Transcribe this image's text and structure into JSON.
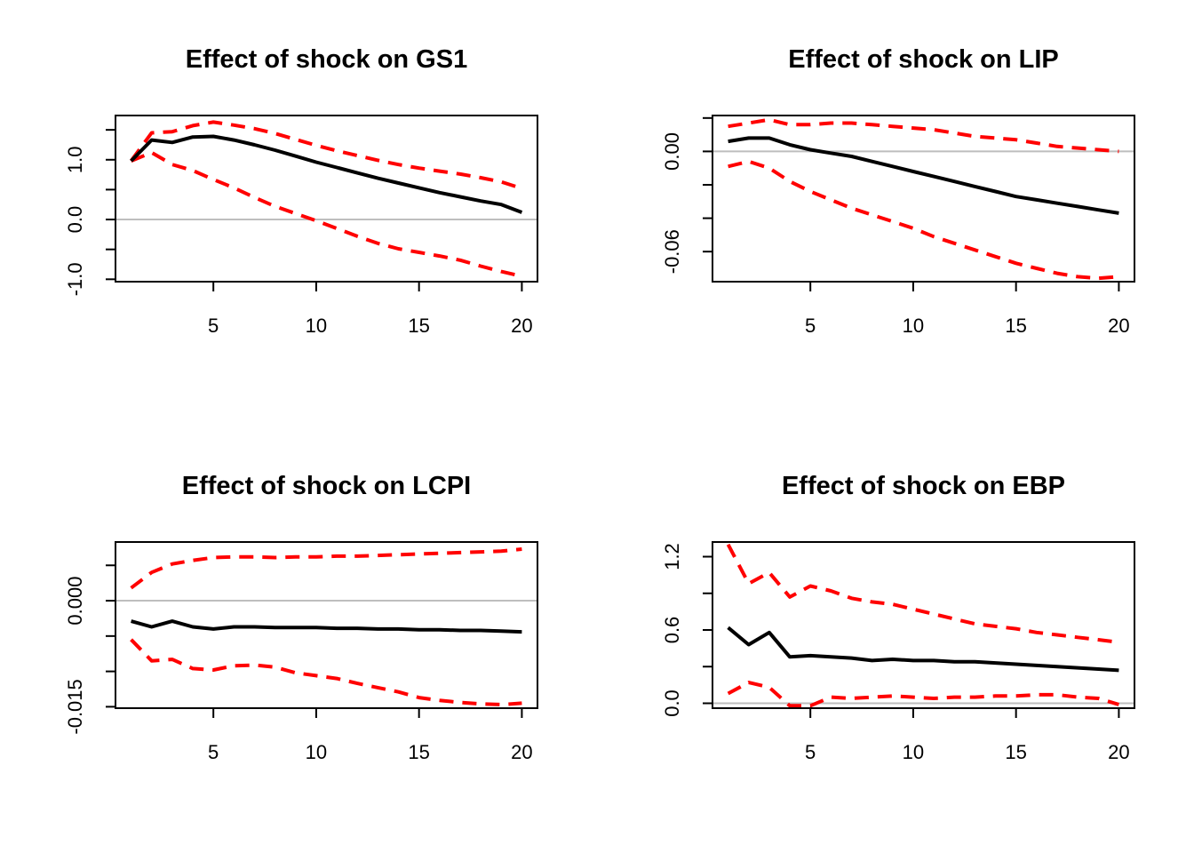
{
  "chart_data": [
    {
      "type": "line",
      "title": "Effect of shock on GS1",
      "xlabel": "",
      "ylabel": "",
      "x": [
        1,
        2,
        3,
        4,
        5,
        6,
        7,
        8,
        9,
        10,
        11,
        12,
        13,
        14,
        15,
        16,
        17,
        18,
        19,
        20
      ],
      "xlim": [
        0.24,
        20.76
      ],
      "ylim": [
        -1.04,
        1.74
      ],
      "xticks": [
        5,
        10,
        15,
        20
      ],
      "yticks": [
        -1.0,
        -0.5,
        0.0,
        0.5,
        1.0,
        1.5
      ],
      "yticklabels": [
        "-1.0",
        "",
        "0.0",
        "",
        "1.0",
        ""
      ],
      "zero_line": true,
      "series": [
        {
          "style": "solid",
          "color": "#000000",
          "values": [
            0.98,
            1.33,
            1.29,
            1.38,
            1.39,
            1.33,
            1.25,
            1.16,
            1.06,
            0.96,
            0.87,
            0.78,
            0.69,
            0.61,
            0.53,
            0.45,
            0.38,
            0.31,
            0.25,
            0.12
          ]
        },
        {
          "style": "dashed",
          "color": "#ff0000",
          "values": [
            0.98,
            1.45,
            1.47,
            1.57,
            1.63,
            1.58,
            1.52,
            1.44,
            1.34,
            1.24,
            1.15,
            1.07,
            0.99,
            0.92,
            0.86,
            0.81,
            0.76,
            0.7,
            0.63,
            0.52
          ]
        },
        {
          "style": "dashed",
          "color": "#ff0000",
          "values": [
            0.98,
            1.12,
            0.92,
            0.82,
            0.67,
            0.53,
            0.37,
            0.22,
            0.1,
            -0.02,
            -0.15,
            -0.28,
            -0.4,
            -0.49,
            -0.55,
            -0.61,
            -0.68,
            -0.78,
            -0.87,
            -0.95
          ]
        }
      ]
    },
    {
      "type": "line",
      "title": "Effect of shock on LIP",
      "xlabel": "",
      "ylabel": "",
      "x": [
        1,
        2,
        3,
        4,
        5,
        6,
        7,
        8,
        9,
        10,
        11,
        12,
        13,
        14,
        15,
        16,
        17,
        18,
        19,
        20
      ],
      "xlim": [
        0.24,
        20.76
      ],
      "ylim": [
        -0.078,
        0.0215
      ],
      "xticks": [
        5,
        10,
        15,
        20
      ],
      "yticks": [
        -0.06,
        -0.04,
        -0.02,
        0.0,
        0.02
      ],
      "yticklabels": [
        "-0.06",
        "",
        "",
        "0.00",
        ""
      ],
      "zero_line": true,
      "series": [
        {
          "style": "solid",
          "color": "#000000",
          "values": [
            0.006,
            0.008,
            0.008,
            0.004,
            0.001,
            -0.001,
            -0.003,
            -0.006,
            -0.009,
            -0.012,
            -0.015,
            -0.018,
            -0.021,
            -0.024,
            -0.027,
            -0.029,
            -0.031,
            -0.033,
            -0.035,
            -0.037
          ]
        },
        {
          "style": "dashed",
          "color": "#ff0000",
          "values": [
            0.015,
            0.017,
            0.019,
            0.016,
            0.016,
            0.017,
            0.017,
            0.016,
            0.015,
            0.014,
            0.013,
            0.011,
            0.009,
            0.008,
            0.007,
            0.005,
            0.003,
            0.002,
            0.001,
            0.0
          ]
        },
        {
          "style": "dashed",
          "color": "#ff0000",
          "values": [
            -0.009,
            -0.006,
            -0.01,
            -0.018,
            -0.024,
            -0.029,
            -0.034,
            -0.038,
            -0.042,
            -0.046,
            -0.051,
            -0.055,
            -0.059,
            -0.063,
            -0.067,
            -0.07,
            -0.073,
            -0.075,
            -0.076,
            -0.075
          ]
        }
      ]
    },
    {
      "type": "line",
      "title": "Effect of shock on LCPI",
      "xlabel": "",
      "ylabel": "",
      "x": [
        1,
        2,
        3,
        4,
        5,
        6,
        7,
        8,
        9,
        10,
        11,
        12,
        13,
        14,
        15,
        16,
        17,
        18,
        19,
        20
      ],
      "xlim": [
        0.24,
        20.76
      ],
      "ylim": [
        -0.0152,
        0.0083
      ],
      "xticks": [
        5,
        10,
        15,
        20
      ],
      "yticks": [
        -0.015,
        -0.01,
        -0.005,
        0.0,
        0.005
      ],
      "yticklabels": [
        "-0.015",
        "",
        "",
        "0.000",
        ""
      ],
      "zero_line": true,
      "series": [
        {
          "style": "solid",
          "color": "#000000",
          "values": [
            -0.0029,
            -0.0037,
            -0.0029,
            -0.0037,
            -0.004,
            -0.0037,
            -0.0037,
            -0.0038,
            -0.0038,
            -0.0038,
            -0.0039,
            -0.0039,
            -0.004,
            -0.004,
            -0.0041,
            -0.0041,
            -0.0042,
            -0.0042,
            -0.0043,
            -0.0044
          ]
        },
        {
          "style": "dashed",
          "color": "#ff0000",
          "values": [
            0.0018,
            0.004,
            0.0052,
            0.0057,
            0.0061,
            0.0062,
            0.0062,
            0.0061,
            0.0062,
            0.0062,
            0.0063,
            0.0063,
            0.0064,
            0.0065,
            0.0066,
            0.0067,
            0.0068,
            0.0069,
            0.007,
            0.0073
          ]
        },
        {
          "style": "dashed",
          "color": "#ff0000",
          "values": [
            -0.0055,
            -0.0085,
            -0.0083,
            -0.0096,
            -0.0098,
            -0.0092,
            -0.0091,
            -0.0094,
            -0.0102,
            -0.0106,
            -0.011,
            -0.0117,
            -0.0123,
            -0.0129,
            -0.0137,
            -0.0141,
            -0.0144,
            -0.0146,
            -0.0147,
            -0.0145
          ]
        }
      ]
    },
    {
      "type": "line",
      "title": "Effect of shock on EBP",
      "xlabel": "",
      "ylabel": "",
      "x": [
        1,
        2,
        3,
        4,
        5,
        6,
        7,
        8,
        9,
        10,
        11,
        12,
        13,
        14,
        15,
        16,
        17,
        18,
        19,
        20
      ],
      "xlim": [
        0.24,
        20.76
      ],
      "ylim": [
        -0.04,
        1.32
      ],
      "xticks": [
        5,
        10,
        15,
        20
      ],
      "yticks": [
        0.0,
        0.3,
        0.6,
        0.9,
        1.2
      ],
      "yticklabels": [
        "0.0",
        "",
        "0.6",
        "",
        "1.2"
      ],
      "zero_line": true,
      "series": [
        {
          "style": "solid",
          "color": "#000000",
          "values": [
            0.62,
            0.48,
            0.58,
            0.38,
            0.39,
            0.38,
            0.37,
            0.35,
            0.36,
            0.35,
            0.35,
            0.34,
            0.34,
            0.33,
            0.32,
            0.31,
            0.3,
            0.29,
            0.28,
            0.27
          ]
        },
        {
          "style": "dashed",
          "color": "#ff0000",
          "values": [
            1.3,
            0.98,
            1.07,
            0.87,
            0.96,
            0.92,
            0.86,
            0.83,
            0.81,
            0.77,
            0.73,
            0.69,
            0.65,
            0.63,
            0.61,
            0.58,
            0.56,
            0.54,
            0.52,
            0.5
          ]
        },
        {
          "style": "dashed",
          "color": "#ff0000",
          "values": [
            0.08,
            0.17,
            0.13,
            -0.02,
            -0.02,
            0.05,
            0.04,
            0.05,
            0.06,
            0.05,
            0.04,
            0.05,
            0.05,
            0.06,
            0.06,
            0.07,
            0.07,
            0.05,
            0.04,
            -0.01
          ]
        }
      ]
    }
  ]
}
